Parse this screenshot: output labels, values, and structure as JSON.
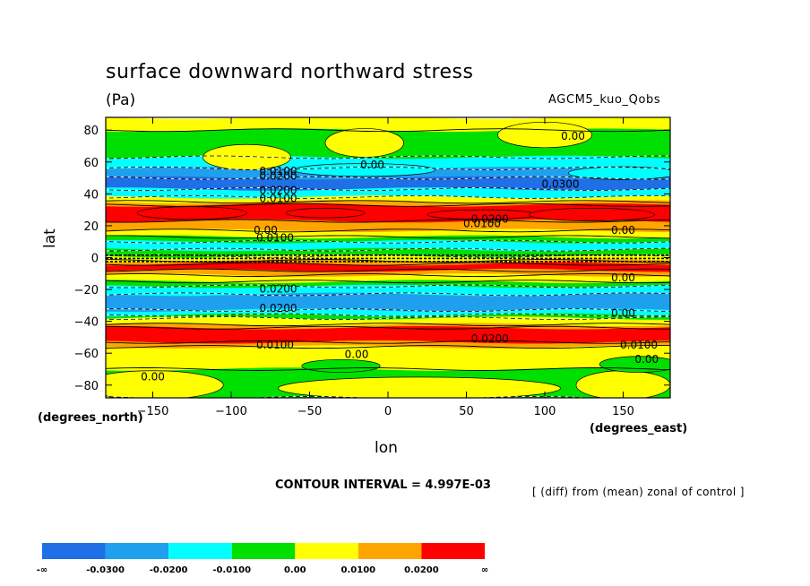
{
  "header": {
    "title": "surface downward northward stress",
    "units": "(Pa)",
    "run": "AGCM5_kuo_Qobs"
  },
  "footer": {
    "contour_interval": "CONTOUR INTERVAL = 4.997E-03",
    "diff_note": "[ (diff) from (mean) zonal of control ]"
  },
  "chart_data": {
    "type": "heatmap",
    "title": "surface downward northward stress",
    "subtitle": "(Pa)",
    "xlabel": "lon",
    "ylabel": "lat",
    "x_units": "(degrees_east)",
    "y_units": "(degrees_north)",
    "xlim": [
      -180,
      180
    ],
    "ylim": [
      -88,
      88
    ],
    "x_ticks": [
      -150,
      -100,
      -50,
      0,
      50,
      100,
      150
    ],
    "y_ticks": [
      80,
      60,
      40,
      20,
      0,
      -20,
      -40,
      -60,
      -80
    ],
    "colorbar": {
      "labels": [
        "-∞",
        "-0.0300",
        "-0.0200",
        "-0.0100",
        "0.00",
        "0.0100",
        "0.0200",
        "∞"
      ],
      "colors": [
        "#1f6fe6",
        "#1fa0ef",
        "#00ffff",
        "#00e000",
        "#ffff00",
        "#ffa500",
        "#ff0000"
      ]
    },
    "color_levels": [
      "<-0.0300",
      "-0.0300..-0.0200",
      "-0.0200..-0.0100",
      "-0.0100..0.00",
      "0.00..0.0100",
      "0.0100..0.0200",
      ">0.0200"
    ],
    "zonal_bands": [
      {
        "lat": [
          80,
          88
        ],
        "level": 4
      },
      {
        "lat": [
          63,
          80
        ],
        "level": 3
      },
      {
        "lat": [
          56,
          63
        ],
        "level": 2
      },
      {
        "lat": [
          50,
          56
        ],
        "level": 1
      },
      {
        "lat": [
          43,
          50
        ],
        "level": 0
      },
      {
        "lat": [
          38,
          43
        ],
        "level": 2
      },
      {
        "lat": [
          35,
          38
        ],
        "level": 4
      },
      {
        "lat": [
          33,
          35
        ],
        "level": 5
      },
      {
        "lat": [
          23,
          33
        ],
        "level": 6
      },
      {
        "lat": [
          17,
          23
        ],
        "level": 5
      },
      {
        "lat": [
          13,
          17
        ],
        "level": 4
      },
      {
        "lat": [
          10,
          13
        ],
        "level": 3
      },
      {
        "lat": [
          5,
          10
        ],
        "level": 2
      },
      {
        "lat": [
          1,
          5
        ],
        "level": 3
      },
      {
        "lat": [
          -2,
          1
        ],
        "level": 4
      },
      {
        "lat": [
          -4,
          -2
        ],
        "level": 5
      },
      {
        "lat": [
          -8,
          -4
        ],
        "level": 6
      },
      {
        "lat": [
          -11,
          -8
        ],
        "level": 5
      },
      {
        "lat": [
          -15,
          -11
        ],
        "level": 4
      },
      {
        "lat": [
          -18,
          -15
        ],
        "level": 3
      },
      {
        "lat": [
          -23,
          -18
        ],
        "level": 2
      },
      {
        "lat": [
          -33,
          -23
        ],
        "level": 1
      },
      {
        "lat": [
          -36,
          -33
        ],
        "level": 2
      },
      {
        "lat": [
          -38,
          -36
        ],
        "level": 3
      },
      {
        "lat": [
          -42,
          -38
        ],
        "level": 4
      },
      {
        "lat": [
          -44,
          -42
        ],
        "level": 5
      },
      {
        "lat": [
          -53,
          -44
        ],
        "level": 6
      },
      {
        "lat": [
          -56,
          -53
        ],
        "level": 5
      },
      {
        "lat": [
          -70,
          -56
        ],
        "level": 4
      },
      {
        "lat": [
          -88,
          -70
        ],
        "level": 3
      }
    ],
    "anomalies": [
      {
        "lon": -90,
        "lat": 63,
        "rx": 28,
        "ry": 8,
        "level": 4
      },
      {
        "lon": -15,
        "lat": 72,
        "rx": 25,
        "ry": 9,
        "level": 4
      },
      {
        "lon": 100,
        "lat": 77,
        "rx": 30,
        "ry": 8,
        "level": 4
      },
      {
        "lon": -15,
        "lat": 55,
        "rx": 45,
        "ry": 4,
        "level": 2
      },
      {
        "lon": 150,
        "lat": 53,
        "rx": 35,
        "ry": 4,
        "level": 2
      },
      {
        "lon": -125,
        "lat": 28,
        "rx": 35,
        "ry": 4,
        "level": 6
      },
      {
        "lon": -40,
        "lat": 28,
        "rx": 25,
        "ry": 3,
        "level": 6
      },
      {
        "lon": 60,
        "lat": 27,
        "rx": 35,
        "ry": 3,
        "level": 6
      },
      {
        "lon": 130,
        "lat": 27,
        "rx": 40,
        "ry": 4,
        "level": 6
      },
      {
        "lon": -150,
        "lat": -80,
        "rx": 45,
        "ry": 9,
        "level": 4
      },
      {
        "lon": 20,
        "lat": -82,
        "rx": 90,
        "ry": 7,
        "level": 4
      },
      {
        "lon": 150,
        "lat": -80,
        "rx": 30,
        "ry": 9,
        "level": 4
      },
      {
        "lon": -30,
        "lat": -68,
        "rx": 25,
        "ry": 4,
        "level": 3
      },
      {
        "lon": 160,
        "lat": -67,
        "rx": 25,
        "ry": 5,
        "level": 3
      }
    ],
    "contour_labels": [
      {
        "text": "0.00",
        "lon": 118,
        "lat": 74
      },
      {
        "text": "0.0100",
        "lon": -70,
        "lat": 52
      },
      {
        "text": "0.0200",
        "lon": -70,
        "lat": 49
      },
      {
        "text": "0.00",
        "lon": -10,
        "lat": 56
      },
      {
        "text": "0.0300",
        "lon": 110,
        "lat": 44
      },
      {
        "text": "0.0200",
        "lon": -70,
        "lat": 40
      },
      {
        "text": "0.0100",
        "lon": -70,
        "lat": 35
      },
      {
        "text": "0.0200",
        "lon": 65,
        "lat": 22
      },
      {
        "text": "0.0100",
        "lon": 60,
        "lat": 19
      },
      {
        "text": "0.00",
        "lon": -78,
        "lat": 15
      },
      {
        "text": "0.0100",
        "lon": -72,
        "lat": 10
      },
      {
        "text": "0.00",
        "lon": 150,
        "lat": 15
      },
      {
        "text": "0.00",
        "lon": 150,
        "lat": -15
      },
      {
        "text": "0.0200",
        "lon": -70,
        "lat": -22
      },
      {
        "text": "0.0200",
        "lon": -70,
        "lat": -34
      },
      {
        "text": "0.00",
        "lon": 150,
        "lat": -37
      },
      {
        "text": "0.0100",
        "lon": -72,
        "lat": -57
      },
      {
        "text": "0.0200",
        "lon": 65,
        "lat": -53
      },
      {
        "text": "0.0100",
        "lon": 160,
        "lat": -57
      },
      {
        "text": "0.00",
        "lon": -20,
        "lat": -63
      },
      {
        "text": "0.00",
        "lon": 165,
        "lat": -66
      },
      {
        "text": "0.00",
        "lon": -150,
        "lat": -77
      }
    ]
  }
}
